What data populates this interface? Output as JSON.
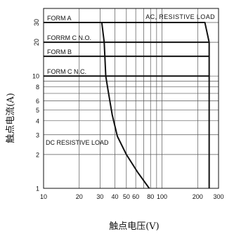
{
  "chart_data": {
    "type": "line",
    "x_scale": "log",
    "y_scale": "log",
    "xlim": [
      10,
      300
    ],
    "ylim": [
      1,
      40
    ],
    "xlabel": "触点电压(V)",
    "ylabel": "触点电流(A)",
    "x_ticks": [
      10,
      20,
      30,
      40,
      50,
      60,
      80,
      100,
      200,
      300
    ],
    "y_ticks": [
      1,
      2,
      3,
      4,
      5,
      6,
      8,
      10,
      20,
      30
    ],
    "x_minor": [
      70,
      90
    ],
    "y_minor": [
      7,
      9
    ],
    "grid": true,
    "region_labels": {
      "ac": "AC, RESISTIVE LOAD",
      "dc": "DC RESISTIVE LOAD"
    },
    "series": [
      {
        "name": "FORM A",
        "level": 30,
        "x": [
          10,
          230
        ],
        "y": [
          30,
          30
        ]
      },
      {
        "name": "FORRM C N.O.",
        "level": 20,
        "x": [
          10,
          250
        ],
        "y": [
          20,
          20
        ]
      },
      {
        "name": "FORM B",
        "level": 15,
        "x": [
          10,
          250
        ],
        "y": [
          15,
          15
        ]
      },
      {
        "name": "FORM C N.C.",
        "level": 10,
        "x": [
          10,
          250
        ],
        "y": [
          10,
          10
        ]
      }
    ],
    "ac_curve": {
      "x": [
        30,
        230,
        250,
        250
      ],
      "y": [
        30,
        30,
        20,
        1
      ]
    },
    "dc_curve": {
      "x": [
        31,
        32.5,
        33.5,
        35,
        38,
        42,
        50,
        62,
        78
      ],
      "y": [
        30,
        20,
        10,
        7.5,
        4.5,
        2.9,
        2.0,
        1.4,
        1.0
      ]
    }
  }
}
